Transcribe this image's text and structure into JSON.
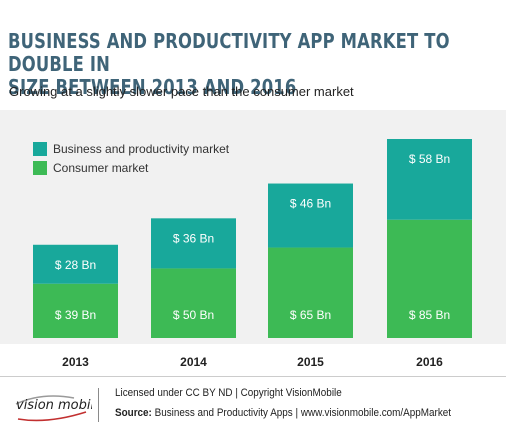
{
  "header": {
    "title_line1": "BUSINESS AND PRODUCTIVITY APP MARKET TO DOUBLE IN",
    "title_line2": "SIZE BETWEEN 2013 AND 2016",
    "subtitle": "Growing at a slightly slower pace than the consumer market"
  },
  "chart_data": {
    "type": "bar",
    "stacked": true,
    "categories": [
      "2013",
      "2014",
      "2015",
      "2016"
    ],
    "series": [
      {
        "name": "Consumer market",
        "values": [
          39,
          50,
          65,
          85
        ],
        "labels": [
          "$ 39 Bn",
          "$ 50 Bn",
          "$ 65 Bn",
          "$ 85 Bn"
        ],
        "color": "#3dba55"
      },
      {
        "name": "Business and productivity market",
        "values": [
          28,
          36,
          46,
          58
        ],
        "labels": [
          "$ 28 Bn",
          "$ 36 Bn",
          "$ 46 Bn",
          "$ 58 Bn"
        ],
        "color": "#18a89b"
      }
    ],
    "legend_placement": "top-left",
    "grid": false,
    "ylim": [
      0,
      150
    ],
    "title": "BUSINESS AND PRODUCTIVITY APP MARKET TO DOUBLE IN SIZE BETWEEN 2013 AND 2016",
    "subtitle": "Growing at a slightly slower pace than the consumer market",
    "xlabel": "",
    "ylabel": ""
  },
  "footer": {
    "logo_text": "vision mobile",
    "license": "Licensed under CC BY ND | Copyright VisionMobile",
    "source_label": "Source:",
    "source_text": "Business and Productivity Apps | www.visionmobile.com/AppMarket"
  }
}
